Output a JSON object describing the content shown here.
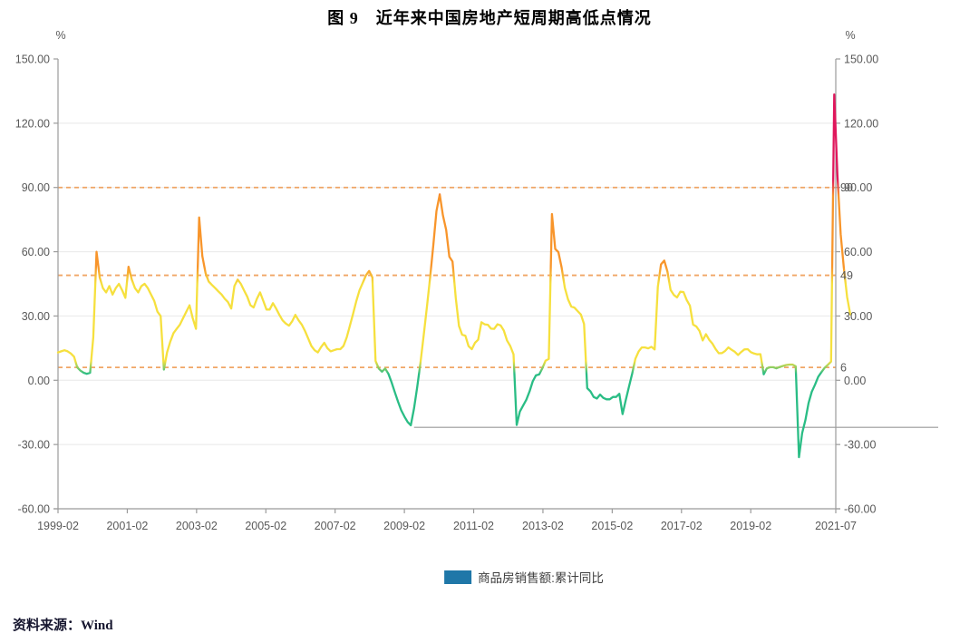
{
  "title": "图 9　近年来中国房地产短周期高低点情况",
  "source_label": "资料来源：Wind",
  "legend": {
    "swatch_color": "#1f77a8",
    "label": "商品房销售额:累计同比"
  },
  "chart_data": {
    "type": "line",
    "title": "图 9　近年来中国房地产短周期高低点情况",
    "ylabel": "%",
    "unit_label_left": "%",
    "unit_label_right": "%",
    "ylim": [
      -60,
      150
    ],
    "grid": true,
    "legend_position": "bottom",
    "y_tick_values": [
      150,
      120,
      90,
      60,
      30,
      0,
      -30,
      -60
    ],
    "y_tick_labels": [
      "150.00",
      "120.00",
      "90.00",
      "60.00",
      "30.00",
      "0.00",
      "-30.00",
      "-60.00"
    ],
    "x_tick_labels": [
      "1999-02",
      "2001-02",
      "2003-02",
      "2005-02",
      "2007-02",
      "2009-02",
      "2011-02",
      "2013-02",
      "2015-02",
      "2017-02",
      "2019-02",
      "2021-07"
    ],
    "x_tick_indices": [
      0,
      22,
      44,
      66,
      88,
      110,
      132,
      154,
      176,
      198,
      220,
      247
    ],
    "thresholds": [
      {
        "value": 90,
        "label": "90"
      },
      {
        "value": 49,
        "label": "49"
      },
      {
        "value": 6,
        "label": "6"
      }
    ],
    "reference_line": {
      "value": -22,
      "from_index": 111
    },
    "colors": {
      "red": "#e0175c",
      "orange": "#f8952b",
      "yellow": "#f6e03e",
      "green": "#2abd85",
      "threshold": "#ef9d55",
      "grid": "#e8e8e8",
      "axis": "#9b9b9b",
      "tick_text": "#595959",
      "ref_line": "#b3b3b3"
    },
    "color_bands": "line colored by value: >90 red, 49-90 orange, 6-49 yellow, <6 green",
    "series": [
      {
        "name": "商品房销售额:累计同比",
        "months_note": "values run Feb-Dec each year (no Jan), 2021 runs Feb-Jul",
        "data_by_year": [
          {
            "year": 1999,
            "start_month": 2,
            "values": [
              13,
              13.5,
              14,
              13.5,
              12.5,
              11,
              6,
              4.5,
              3.5,
              3,
              3.5
            ]
          },
          {
            "year": 2000,
            "start_month": 2,
            "values": [
              20,
              60,
              48,
              43,
              41,
              44,
              40,
              43,
              45,
              42,
              38.5
            ]
          },
          {
            "year": 2001,
            "start_month": 2,
            "values": [
              53,
              47,
              43,
              41,
              44,
              45,
              43,
              40,
              37,
              32,
              30
            ]
          },
          {
            "year": 2002,
            "start_month": 2,
            "values": [
              5,
              13,
              18,
              22,
              24,
              26,
              29,
              32,
              35,
              29,
              24
            ]
          },
          {
            "year": 2003,
            "start_month": 2,
            "values": [
              76,
              58,
              50,
              46,
              44.5,
              43,
              41.5,
              40,
              38,
              36.5,
              33.5
            ]
          },
          {
            "year": 2004,
            "start_month": 2,
            "values": [
              44,
              47,
              45,
              42,
              39,
              35,
              34,
              38,
              41,
              37,
              33
            ]
          },
          {
            "year": 2005,
            "start_month": 2,
            "values": [
              33,
              36,
              33.5,
              30.5,
              28,
              26.5,
              25.5,
              27.5,
              30.5,
              28,
              26
            ]
          },
          {
            "year": 2006,
            "start_month": 2,
            "values": [
              23,
              19.5,
              16,
              14,
              13,
              15.5,
              17.5,
              15,
              13.5,
              14,
              14.5
            ]
          },
          {
            "year": 2007,
            "start_month": 2,
            "values": [
              14.5,
              16,
              20,
              25.5,
              31,
              37,
              42,
              45.5,
              49,
              51,
              48
            ]
          },
          {
            "year": 2008,
            "start_month": 2,
            "values": [
              9,
              5.5,
              4,
              5.5,
              3,
              -1,
              -5.5,
              -10,
              -14,
              -17,
              -19.5
            ]
          },
          {
            "year": 2009,
            "start_month": 2,
            "values": [
              -21,
              -13,
              -3,
              8,
              21,
              34,
              48,
              63,
              79,
              86.8,
              77
            ]
          },
          {
            "year": 2010,
            "start_month": 2,
            "values": [
              70.2,
              57.7,
              55.4,
              38.4,
              25.4,
              21.3,
              20.8,
              15.9,
              14.5,
              17.5,
              18.9
            ]
          },
          {
            "year": 2011,
            "start_month": 2,
            "values": [
              27.1,
              26.1,
              25.9,
              24.1,
              24.0,
              26.1,
              25.6,
              23.2,
              18.5,
              16.0,
              12.1
            ]
          },
          {
            "year": 2012,
            "start_month": 2,
            "values": [
              -20.9,
              -14.6,
              -11.8,
              -9.1,
              -5.2,
              -0.5,
              2.3,
              2.7,
              5.6,
              9.1,
              10.0
            ]
          },
          {
            "year": 2013,
            "start_month": 2,
            "values": [
              77.6,
              61.3,
              59.8,
              52.8,
              43.2,
              37.8,
              34.4,
              33.9,
              32.3,
              30.7,
              26.3
            ]
          },
          {
            "year": 2014,
            "start_month": 2,
            "values": [
              -3.7,
              -5.2,
              -7.8,
              -8.5,
              -6.7,
              -8.2,
              -8.9,
              -8.9,
              -7.8,
              -7.8,
              -6.3
            ]
          },
          {
            "year": 2015,
            "start_month": 2,
            "values": [
              -15.8,
              -9.3,
              -3.1,
              3.1,
              10.0,
              13.4,
              15.3,
              15.3,
              14.9,
              15.6,
              14.4
            ]
          },
          {
            "year": 2016,
            "start_month": 2,
            "values": [
              43.6,
              54.1,
              55.9,
              50.7,
              42.1,
              39.8,
              38.7,
              41.3,
              41.2,
              37.5,
              34.8
            ]
          },
          {
            "year": 2017,
            "start_month": 2,
            "values": [
              26.0,
              25.1,
              23.0,
              18.6,
              21.5,
              18.9,
              17.2,
              14.6,
              12.6,
              12.7,
              13.7
            ]
          },
          {
            "year": 2018,
            "start_month": 2,
            "values": [
              15.3,
              14.2,
              13.3,
              11.8,
              13.2,
              14.4,
              14.5,
              13.1,
              12.5,
              12.1,
              12.2
            ]
          },
          {
            "year": 2019,
            "start_month": 2,
            "values": [
              2.8,
              5.6,
              6.1,
              6.1,
              5.6,
              6.2,
              6.7,
              7.1,
              7.3,
              7.3,
              6.5
            ]
          },
          {
            "year": 2020,
            "start_month": 2,
            "values": [
              -35.9,
              -24.7,
              -18.6,
              -10.6,
              -5.4,
              -2.1,
              1.6,
              3.8,
              5.8,
              7.2,
              8.7
            ]
          },
          {
            "year": 2021,
            "start_month": 2,
            "values": [
              133.4,
              95.9,
              68.2,
              52.4,
              38.9,
              30.7
            ]
          }
        ]
      }
    ]
  }
}
